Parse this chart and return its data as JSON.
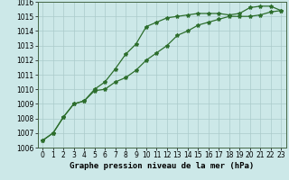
{
  "title": "Graphe pression niveau de la mer (hPa)",
  "line1_x": [
    0,
    1,
    2,
    3,
    4,
    5,
    6,
    7,
    8,
    9,
    10,
    11,
    12,
    13,
    14,
    15,
    16,
    17,
    18,
    19,
    20,
    21,
    22,
    23
  ],
  "line1_y": [
    1006.5,
    1007.0,
    1008.1,
    1009.0,
    1009.2,
    1010.0,
    1010.5,
    1011.4,
    1012.4,
    1013.1,
    1014.3,
    1014.6,
    1014.9,
    1015.0,
    1015.1,
    1015.2,
    1015.2,
    1015.2,
    1015.1,
    1015.2,
    1015.6,
    1015.7,
    1015.7,
    1015.4
  ],
  "line2_x": [
    0,
    1,
    2,
    3,
    4,
    5,
    6,
    7,
    8,
    9,
    10,
    11,
    12,
    13,
    14,
    15,
    16,
    17,
    18,
    19,
    20,
    21,
    22,
    23
  ],
  "line2_y": [
    1006.5,
    1007.0,
    1008.1,
    1009.0,
    1009.2,
    1009.9,
    1010.0,
    1010.5,
    1010.8,
    1011.3,
    1012.0,
    1012.5,
    1013.0,
    1013.7,
    1014.0,
    1014.4,
    1014.6,
    1014.8,
    1015.0,
    1015.0,
    1015.0,
    1015.1,
    1015.3,
    1015.4
  ],
  "xlim": [
    -0.5,
    23.5
  ],
  "ylim": [
    1006,
    1016
  ],
  "yticks": [
    1006,
    1007,
    1008,
    1009,
    1010,
    1011,
    1012,
    1013,
    1014,
    1015,
    1016
  ],
  "xticks": [
    0,
    1,
    2,
    3,
    4,
    5,
    6,
    7,
    8,
    9,
    10,
    11,
    12,
    13,
    14,
    15,
    16,
    17,
    18,
    19,
    20,
    21,
    22,
    23
  ],
  "line_color": "#2d6e2d",
  "bg_color": "#cce8e8",
  "grid_color": "#aacaca",
  "title_color": "#000000",
  "marker": "*",
  "markersize": 3,
  "linewidth": 0.9,
  "tick_fontsize": 5.5,
  "title_fontsize": 6.5
}
